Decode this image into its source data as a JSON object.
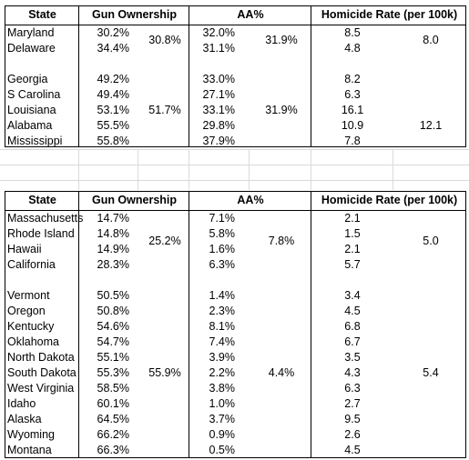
{
  "headers": {
    "state": "State",
    "gun": "Gun Ownership",
    "aa": "AA%",
    "homicide": "Homicide Rate (per 100k)"
  },
  "table1": {
    "rows": [
      {
        "state": "Maryland",
        "gun": "30.2%",
        "aa": "32.0%",
        "homicide": "8.5"
      },
      {
        "state": "Delaware",
        "gun": "34.4%",
        "aa": "31.1%",
        "homicide": "4.8"
      },
      {
        "state": "",
        "gun": "",
        "aa": "",
        "homicide": ""
      },
      {
        "state": "Georgia",
        "gun": "49.2%",
        "aa": "33.0%",
        "homicide": "8.2"
      },
      {
        "state": "S Carolina",
        "gun": "49.4%",
        "aa": "27.1%",
        "homicide": "6.3"
      },
      {
        "state": "Louisiana",
        "gun": "53.1%",
        "aa": "33.1%",
        "homicide": "16.1"
      },
      {
        "state": "Alabama",
        "gun": "55.5%",
        "aa": "29.8%",
        "homicide": "10.9"
      },
      {
        "state": "Mississippi",
        "gun": "55.8%",
        "aa": "37.9%",
        "homicide": "7.8"
      }
    ],
    "group_low": {
      "gun": "30.8%",
      "aa": "31.9%",
      "homicide": "8.0"
    },
    "group_high": {
      "gun": "51.7%",
      "aa": "31.9%",
      "homicide": "12.1"
    }
  },
  "table2": {
    "rows": [
      {
        "state": "Massachusetts",
        "gun": "14.7%",
        "aa": "7.1%",
        "homicide": "2.1"
      },
      {
        "state": "Rhode Island",
        "gun": "14.8%",
        "aa": "5.8%",
        "homicide": "1.5"
      },
      {
        "state": "Hawaii",
        "gun": "14.9%",
        "aa": "1.6%",
        "homicide": "2.1"
      },
      {
        "state": "California",
        "gun": "28.3%",
        "aa": "6.3%",
        "homicide": "5.7"
      },
      {
        "state": "",
        "gun": "",
        "aa": "",
        "homicide": ""
      },
      {
        "state": "Vermont",
        "gun": "50.5%",
        "aa": "1.4%",
        "homicide": "3.4"
      },
      {
        "state": "Oregon",
        "gun": "50.8%",
        "aa": "2.3%",
        "homicide": "4.5"
      },
      {
        "state": "Kentucky",
        "gun": "54.6%",
        "aa": "8.1%",
        "homicide": "6.8"
      },
      {
        "state": "Oklahoma",
        "gun": "54.7%",
        "aa": "7.4%",
        "homicide": "6.7"
      },
      {
        "state": "North Dakota",
        "gun": "55.1%",
        "aa": "3.9%",
        "homicide": "3.5"
      },
      {
        "state": "South Dakota",
        "gun": "55.3%",
        "aa": "2.2%",
        "homicide": "4.3"
      },
      {
        "state": "West Virginia",
        "gun": "58.5%",
        "aa": "3.8%",
        "homicide": "6.3"
      },
      {
        "state": "Idaho",
        "gun": "60.1%",
        "aa": "1.0%",
        "homicide": "2.7"
      },
      {
        "state": "Alaska",
        "gun": "64.5%",
        "aa": "3.7%",
        "homicide": "9.5"
      },
      {
        "state": "Wyoming",
        "gun": "66.2%",
        "aa": "0.9%",
        "homicide": "2.6"
      },
      {
        "state": "Montana",
        "gun": "66.3%",
        "aa": "0.5%",
        "homicide": "4.5"
      }
    ],
    "group_low": {
      "gun": "25.2%",
      "aa": "7.8%",
      "homicide": "5.0"
    },
    "group_high": {
      "gun": "55.9%",
      "aa": "4.4%",
      "homicide": "5.4"
    }
  }
}
